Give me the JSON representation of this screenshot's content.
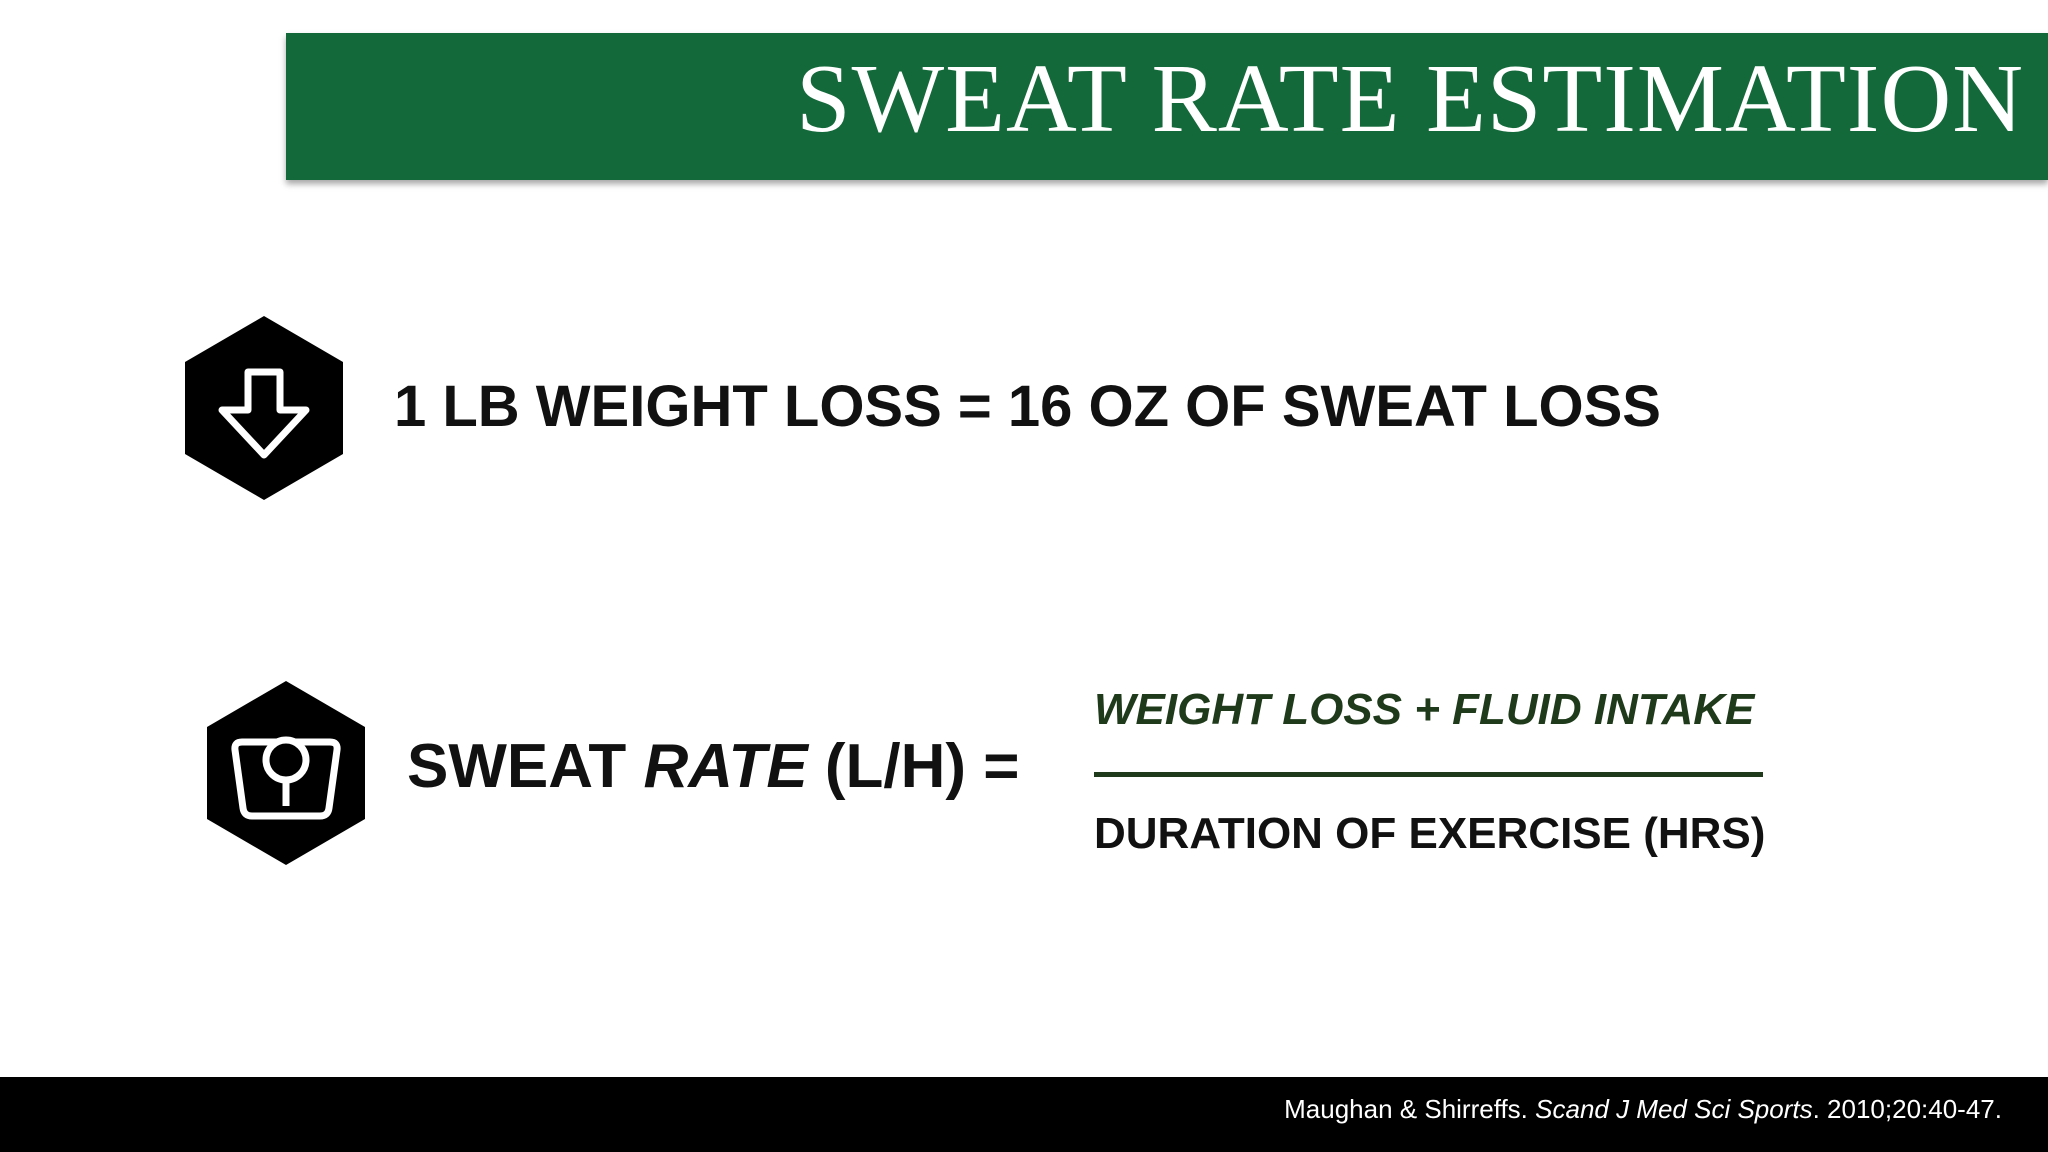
{
  "header": {
    "title": "SWEAT RATE ESTIMATION"
  },
  "rows": [
    {
      "text": "1 LB WEIGHT LOSS = 16 OZ OF SWEAT LOSS"
    },
    {
      "label": {
        "part1": "SWEAT ",
        "italic": "RATE",
        "part2": " (L/H) ="
      },
      "numerator": "WEIGHT LOSS + FLUID INTAKE",
      "denominator": "DURATION OF EXERCISE (HRS)"
    }
  ],
  "footer": {
    "authors": "Maughan & Shirreffs. ",
    "journal": "Scand J Med Sci Sports",
    "details": ". 2010;20:40-47."
  }
}
